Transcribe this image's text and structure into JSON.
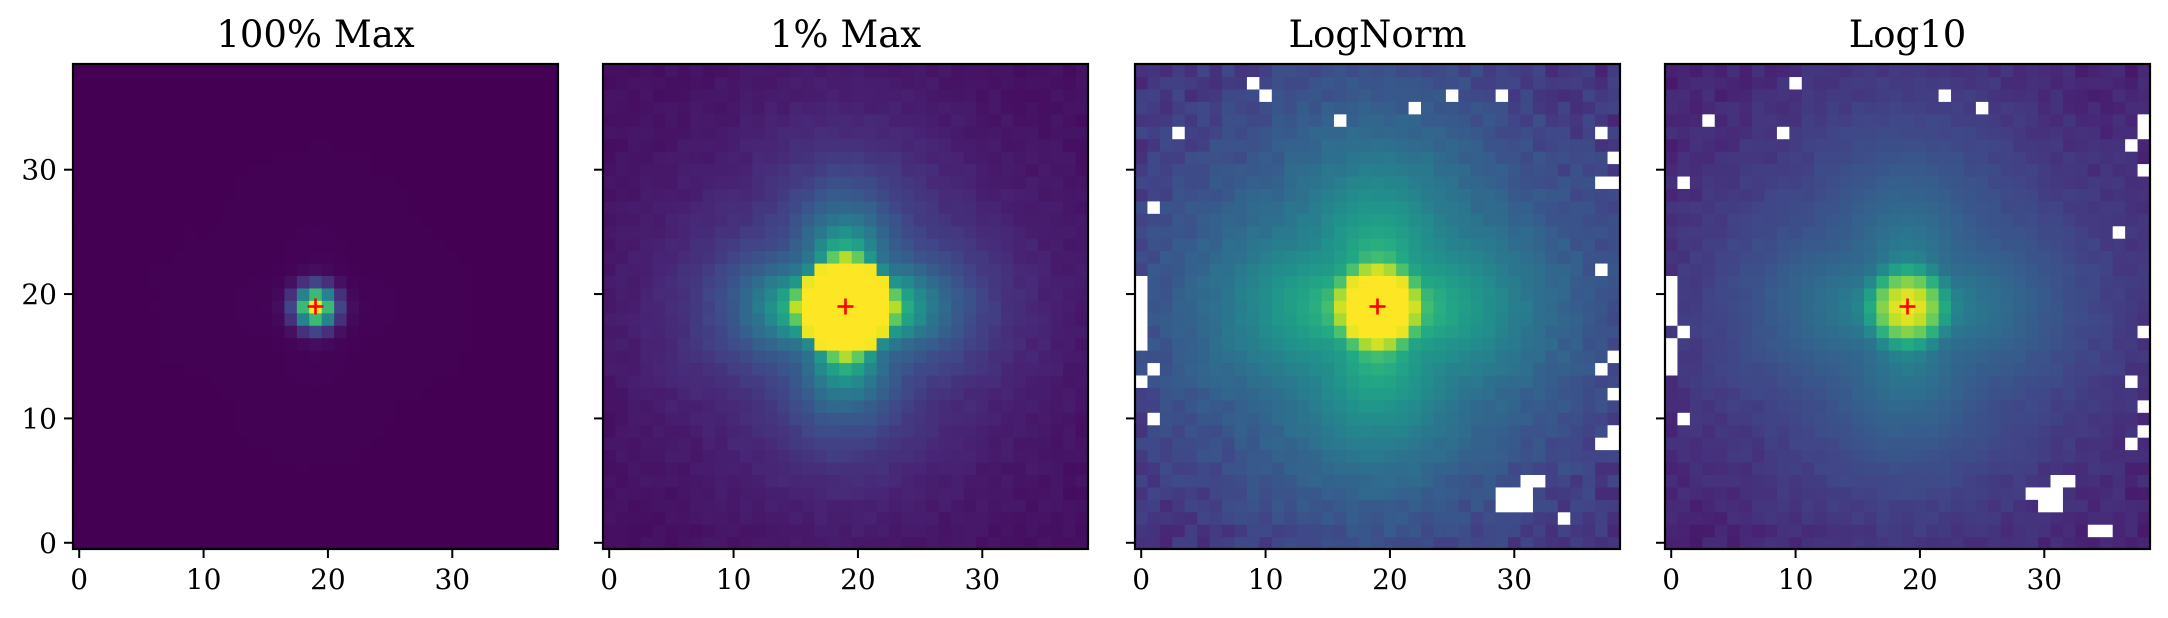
{
  "chart_data": [
    {
      "type": "heatmap",
      "title": "100% Max",
      "xlabel": "",
      "ylabel": "",
      "xlim": [
        -0.5,
        38.5
      ],
      "ylim": [
        -0.5,
        38.5
      ],
      "xticks": [
        0,
        10,
        20,
        30
      ],
      "yticks": [
        0,
        10,
        20,
        30
      ],
      "show_ytick_labels": true,
      "colormap": "viridis",
      "marker": {
        "x": 19,
        "y": 19,
        "symbol": "+",
        "color": "#ff0000"
      },
      "grid": false
    },
    {
      "type": "heatmap",
      "title": "1% Max",
      "xlabel": "",
      "ylabel": "",
      "xlim": [
        -0.5,
        38.5
      ],
      "ylim": [
        -0.5,
        38.5
      ],
      "xticks": [
        0,
        10,
        20,
        30
      ],
      "yticks": [
        0,
        10,
        20,
        30
      ],
      "show_ytick_labels": false,
      "colormap": "viridis",
      "marker": {
        "x": 19,
        "y": 19,
        "symbol": "+",
        "color": "#ff0000"
      },
      "grid": false
    },
    {
      "type": "heatmap",
      "title": "LogNorm",
      "xlabel": "",
      "ylabel": "",
      "xlim": [
        -0.5,
        38.5
      ],
      "ylim": [
        -0.5,
        38.5
      ],
      "xticks": [
        0,
        10,
        20,
        30
      ],
      "yticks": [
        0,
        10,
        20,
        30
      ],
      "show_ytick_labels": false,
      "colormap": "viridis",
      "marker": {
        "x": 19,
        "y": 19,
        "symbol": "+",
        "color": "#ff0000"
      },
      "grid": false
    },
    {
      "type": "heatmap",
      "title": "Log10",
      "xlabel": "",
      "ylabel": "",
      "xlim": [
        -0.5,
        38.5
      ],
      "ylim": [
        -0.5,
        38.5
      ],
      "xticks": [
        0,
        10,
        20,
        30
      ],
      "yticks": [
        0,
        10,
        20,
        30
      ],
      "show_ytick_labels": false,
      "colormap": "viridis",
      "marker": {
        "x": 19,
        "y": 19,
        "symbol": "+",
        "color": "#ff0000"
      },
      "grid": false
    }
  ]
}
